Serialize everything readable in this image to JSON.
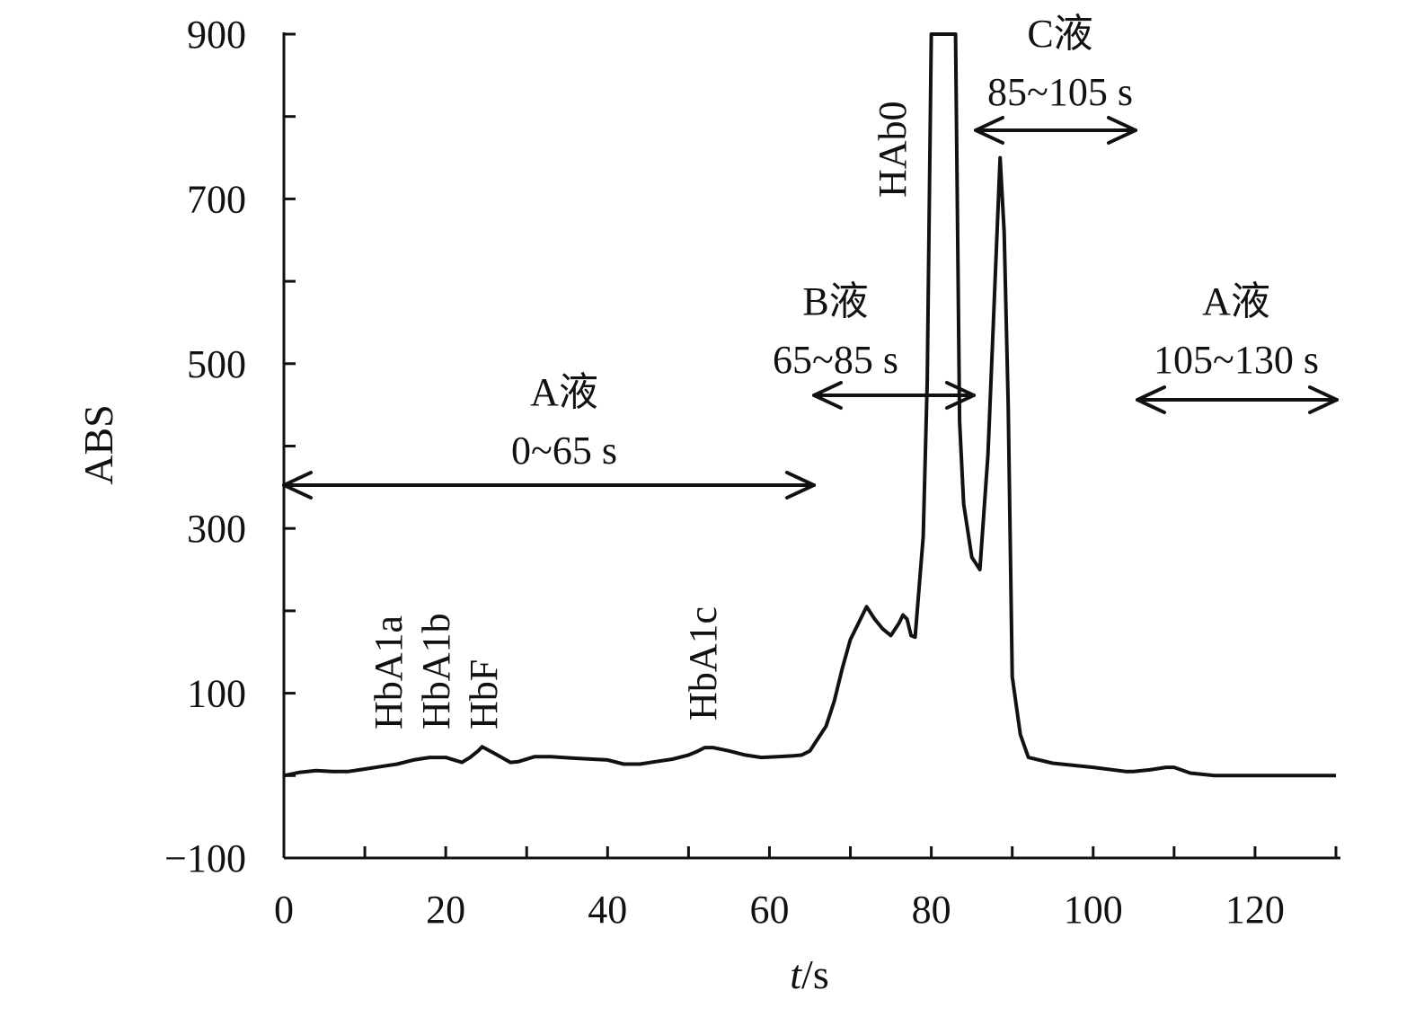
{
  "chart_data": {
    "type": "line",
    "title": "",
    "xlabel_italic": "t",
    "xlabel_unit": "/s",
    "ylabel": "ABS",
    "xlim": [
      0,
      130
    ],
    "ylim": [
      -100,
      900
    ],
    "x_ticks": [
      0,
      20,
      40,
      60,
      80,
      100,
      120
    ],
    "x_minor_ticks": [
      10,
      30,
      50,
      70,
      90,
      110,
      130
    ],
    "y_ticks": [
      -100,
      100,
      300,
      500,
      700,
      900
    ],
    "y_tick_labels": [
      "−100",
      "100",
      "300",
      "500",
      "700",
      "900"
    ],
    "y_minor_ticks": [
      0,
      200,
      400,
      600,
      800
    ],
    "grid": false,
    "series": [
      {
        "x": [
          0,
          2,
          4,
          6,
          8,
          10,
          12,
          14,
          16,
          18,
          20,
          22,
          23,
          24,
          24.5,
          26,
          28,
          29,
          31,
          33,
          36,
          40,
          42,
          44,
          46,
          48,
          50,
          51,
          52,
          53,
          55,
          57,
          59,
          61,
          63,
          64,
          65,
          66,
          67,
          68,
          69,
          70,
          71,
          72,
          73,
          74,
          75,
          76,
          76.5,
          77,
          77.5,
          78,
          79,
          79.5,
          80,
          80.5,
          83,
          83.5,
          84,
          85,
          86,
          87,
          88,
          88.5,
          89,
          89.5,
          90,
          91,
          92,
          95,
          100,
          104,
          105,
          107,
          109,
          110,
          112,
          115,
          120,
          125,
          130
        ],
        "y": [
          0,
          4,
          6,
          5,
          5,
          8,
          11,
          14,
          19,
          22,
          22,
          16,
          22,
          30,
          35,
          27,
          16,
          17,
          23,
          23,
          21,
          19,
          14,
          14,
          17,
          20,
          25,
          29,
          34,
          34,
          30,
          25,
          22,
          23,
          24,
          25,
          30,
          45,
          60,
          90,
          130,
          165,
          185,
          205,
          190,
          178,
          170,
          185,
          195,
          190,
          170,
          168,
          290,
          480,
          900,
          900,
          900,
          430,
          330,
          265,
          250,
          390,
          630,
          750,
          660,
          450,
          120,
          50,
          22,
          15,
          10,
          5,
          5,
          7,
          10,
          10,
          3,
          0,
          0,
          0,
          0
        ]
      }
    ],
    "annotations": {
      "hba1a": "HbA1a",
      "hba1b": "HbA1b",
      "hbf": "HbF",
      "hba1c": "HbA1c",
      "hab0": "HAb0",
      "seg_a1_title": "A液",
      "seg_a1_range": "0~65 s",
      "seg_b_title": "B液",
      "seg_b_range": "65~85 s",
      "seg_c_title": "C液",
      "seg_c_range": "85~105 s",
      "seg_a2_title": "A液",
      "seg_a2_range": "105~130 s"
    }
  }
}
